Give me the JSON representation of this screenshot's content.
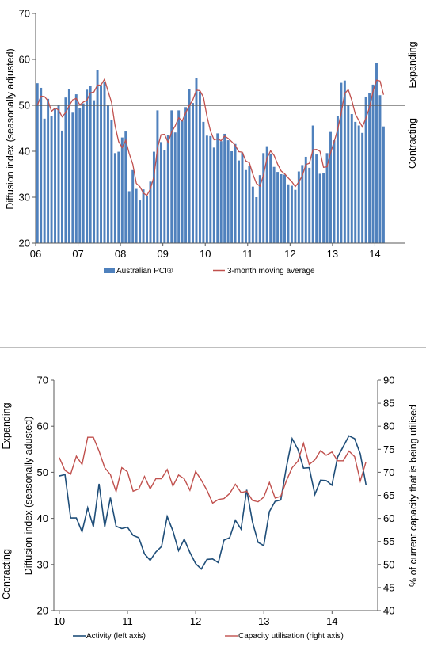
{
  "chart_data": [
    {
      "type": "bar",
      "ylabel": "Diffusion index (seasonally adjusted)",
      "right_labels": {
        "top": "Expanding",
        "bottom": "Contracting"
      },
      "ylim": [
        20,
        70
      ],
      "yticks": [
        20,
        30,
        40,
        50,
        60,
        70
      ],
      "xlim": [
        2006.0,
        2014.72
      ],
      "xticks": [
        {
          "x": 2006,
          "label": "06"
        },
        {
          "x": 2007,
          "label": "07"
        },
        {
          "x": 2008,
          "label": "08"
        },
        {
          "x": 2009,
          "label": "09"
        },
        {
          "x": 2010,
          "label": "10"
        },
        {
          "x": 2011,
          "label": "11"
        },
        {
          "x": 2012,
          "label": "12"
        },
        {
          "x": 2013,
          "label": "13"
        },
        {
          "x": 2014,
          "label": "14"
        }
      ],
      "reference_line": 50,
      "grid": false,
      "legend": {
        "position": "bottom",
        "bar_label": "Australian PCI®",
        "line_label": "3-month moving average"
      },
      "colors": {
        "bar": "#4f81bd",
        "line": "#c0504d",
        "reference": "#595959"
      },
      "start": 2006.0,
      "step": 0.0833,
      "values": [
        54.8,
        53.8,
        47.1,
        51.4,
        47.6,
        49.2,
        49.9,
        44.5,
        51.7,
        53.6,
        48.4,
        52.4,
        49.4,
        50.4,
        53.4,
        54.3,
        51.1,
        57.7,
        54.4,
        55.0,
        49.9,
        46.9,
        39.6,
        39.9,
        43.0,
        44.3,
        31.3,
        35.9,
        31.8,
        29.3,
        31.7,
        30.3,
        33.4,
        39.9,
        48.9,
        42.0,
        40.2,
        43.6,
        48.9,
        44.1,
        48.9,
        46.7,
        49.6,
        53.5,
        50.5,
        56.0,
        53.0,
        46.4,
        43.4,
        43.3,
        40.8,
        43.9,
        42.2,
        43.8,
        42.4,
        40.0,
        41.6,
        38.0,
        39.7,
        35.9,
        36.8,
        32.3,
        30.0,
        34.8,
        39.6,
        41.1,
        39.5,
        36.6,
        35.5,
        35.0,
        34.9,
        32.8,
        32.5,
        31.6,
        35.6,
        37.0,
        38.8,
        36.4,
        45.6,
        39.3,
        35.1,
        35.2,
        39.6,
        44.2,
        42.4,
        47.6,
        54.9,
        55.4,
        49.9,
        48.1,
        46.4,
        45.6,
        44.0,
        51.9,
        52.7,
        54.5,
        59.2,
        52.2,
        45.4
      ],
      "series": [
        {
          "name": "Australian PCI®",
          "values": "values"
        },
        {
          "name": "3-month moving average",
          "values": [
            50.0,
            52.0,
            51.9,
            51.0,
            48.7,
            49.4,
            49.0,
            47.5,
            48.4,
            49.9,
            51.2,
            51.5,
            50.1,
            50.7,
            51.1,
            52.7,
            52.9,
            54.4,
            54.4,
            55.7,
            53.1,
            50.6,
            45.5,
            42.1,
            40.8,
            42.4,
            39.5,
            37.2,
            33.0,
            32.3,
            30.9,
            30.4,
            31.8,
            34.5,
            40.7,
            43.6,
            43.7,
            41.9,
            44.2,
            45.5,
            47.3,
            46.6,
            48.4,
            49.9,
            51.2,
            53.3,
            53.2,
            51.8,
            47.6,
            44.4,
            42.5,
            42.7,
            42.3,
            43.3,
            42.8,
            42.1,
            41.3,
            39.9,
            39.8,
            37.9,
            37.5,
            35.0,
            33.0,
            32.4,
            34.8,
            38.5,
            40.1,
            39.1,
            37.2,
            35.7,
            35.1,
            34.2,
            33.4,
            32.3,
            33.3,
            34.7,
            37.1,
            37.4,
            40.3,
            40.4,
            40.0,
            36.5,
            36.6,
            39.7,
            42.1,
            44.7,
            48.3,
            52.6,
            53.4,
            51.1,
            48.1,
            46.7,
            45.3,
            47.2,
            49.5,
            53.0,
            55.5,
            55.3,
            52.3
          ]
        }
      ]
    },
    {
      "type": "line",
      "left_labels": {
        "top": "Expanding",
        "bottom": "Contracting"
      },
      "ylabel": "Diffusion index (seasonally adusted)",
      "y2label": "% of current capacity that is being utilised",
      "ylim": [
        20,
        70
      ],
      "yticks": [
        20,
        30,
        40,
        50,
        60,
        70
      ],
      "y2lim": [
        40,
        90
      ],
      "y2ticks": [
        40,
        45,
        50,
        55,
        60,
        65,
        70,
        75,
        80,
        85,
        90
      ],
      "xlim": [
        2009.92,
        2014.67
      ],
      "xticks": [
        {
          "x": 2010,
          "label": "10"
        },
        {
          "x": 2011,
          "label": "11"
        },
        {
          "x": 2012,
          "label": "12"
        },
        {
          "x": 2013,
          "label": "13"
        },
        {
          "x": 2014,
          "label": "14"
        }
      ],
      "grid": false,
      "legend": {
        "position": "bottom",
        "left_label": "Activity (left axis)",
        "right_label": "Capacity utilisation (right axis)"
      },
      "colors": {
        "activity": "#1f4e79",
        "capacity": "#c0504d"
      },
      "start": 2010.0,
      "step": 0.0833,
      "series": [
        {
          "name": "Activity (left axis)",
          "axis": "left",
          "values": [
            49.2,
            49.5,
            40.1,
            40.1,
            37.1,
            42.3,
            38.2,
            47.5,
            38.2,
            44.5,
            38.3,
            37.8,
            38.1,
            36.3,
            35.8,
            32.3,
            30.9,
            32.7,
            33.9,
            40.4,
            37.3,
            33.0,
            35.5,
            32.6,
            30.2,
            29.0,
            31.1,
            31.2,
            30.4,
            35.3,
            35.8,
            39.6,
            37.7,
            46.2,
            39.3,
            34.8,
            34.1,
            41.5,
            43.7,
            44.0,
            51.2,
            57.3,
            55.0,
            50.9,
            51.0,
            45.2,
            48.3,
            48.2,
            47.2,
            53.3,
            55.6,
            57.9,
            57.3,
            54.0,
            47.3
          ]
        },
        {
          "name": "Capacity utilisation (right axis)",
          "axis": "right",
          "values": [
            73.2,
            70.4,
            69.6,
            73.5,
            71.7,
            77.6,
            77.6,
            74.6,
            71.0,
            69.5,
            65.8,
            71.0,
            70.1,
            65.9,
            66.4,
            69.1,
            66.4,
            68.6,
            68.6,
            70.6,
            67.0,
            69.4,
            68.6,
            66.1,
            70.2,
            68.3,
            66.1,
            63.3,
            64.1,
            64.3,
            65.4,
            67.4,
            65.6,
            65.9,
            63.9,
            63.6,
            64.6,
            67.8,
            64.4,
            64.8,
            68.2,
            71.0,
            72.4,
            76.3,
            71.7,
            72.7,
            74.7,
            73.7,
            74.4,
            72.5,
            72.5,
            74.6,
            73.4,
            68.1,
            72.3
          ]
        }
      ]
    }
  ]
}
